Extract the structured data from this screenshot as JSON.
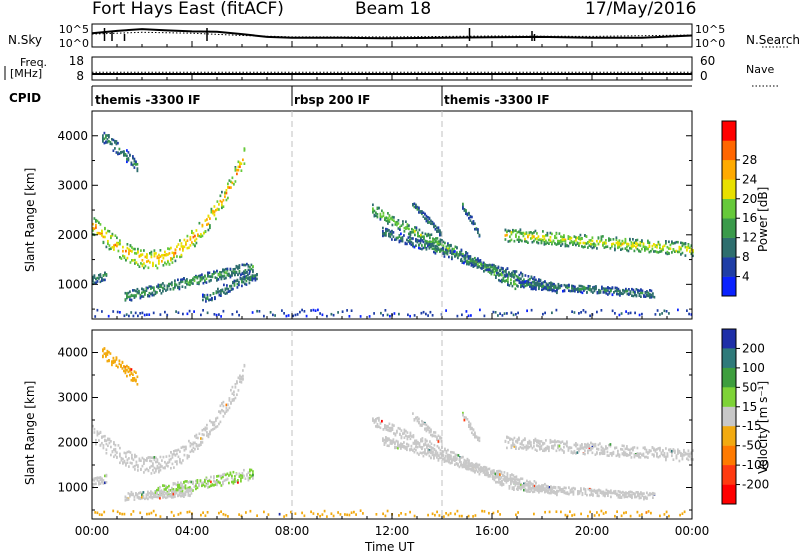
{
  "header": {
    "title": "Fort Hays East (fitACF)",
    "beam": "Beam 18",
    "date": "17/May/2016"
  },
  "labels": {
    "nsky": "N.Sky",
    "nsearch": "N.Search",
    "freq_line1": "Freq.",
    "freq_line2": "[MHz]",
    "nave": "Nave",
    "cpid": "CPID",
    "slant_range": "Slant Range [km]",
    "power_axis": "Power [dB]",
    "velocity_axis": "Velocity [m s⁻¹]",
    "time_ut": "Time UT"
  },
  "cpid_segments": [
    {
      "name": "themis -3300 IF",
      "start_hour": 0
    },
    {
      "name": "rbsp 200 IF",
      "start_hour": 8
    },
    {
      "name": "themis -3300 IF",
      "start_hour": 14
    }
  ],
  "colorbars": {
    "power": {
      "ticks": [
        "4",
        "8",
        "12",
        "16",
        "20",
        "24",
        "28"
      ],
      "colors": [
        "#0a22ff",
        "#1f3ea6",
        "#2e6e6e",
        "#3a9a4a",
        "#66c93a",
        "#e8e000",
        "#ffaa00",
        "#ff6600",
        "#ff0000"
      ]
    },
    "velocity": {
      "ticks": [
        "200",
        "100",
        "50",
        "15",
        "-15",
        "-50",
        "-100",
        "-200"
      ],
      "colors": [
        "#1e2fa8",
        "#2f7a7a",
        "#3e9e3e",
        "#7ed337",
        "#c8c8c8",
        "#f2aa10",
        "#ff7a00",
        "#ff3a10",
        "#ff0000"
      ]
    }
  },
  "chart_data": [
    {
      "type": "line",
      "panel": "N.Sky / N.Search",
      "x_range_hours": [
        0,
        24
      ],
      "ylim_left": [
        "10^0",
        "10^5"
      ],
      "ylim_right": [
        "10^0",
        "10^5"
      ],
      "y_ticks_left": [
        "10^5",
        "10^0"
      ],
      "y_ticks_right": [
        "10^5",
        "10^0"
      ],
      "series": [
        {
          "name": "N.Sky",
          "style": "solid",
          "points": [
            [
              0,
              3.0
            ],
            [
              1,
              3.5
            ],
            [
              2,
              3.9
            ],
            [
              3,
              3.6
            ],
            [
              4,
              3.4
            ],
            [
              5,
              3.3
            ],
            [
              6,
              2.8
            ],
            [
              7,
              2.2
            ],
            [
              8,
              2.0
            ],
            [
              10,
              2.0
            ],
            [
              12,
              1.9
            ],
            [
              14,
              2.0
            ],
            [
              16,
              2.1
            ],
            [
              18,
              2.2
            ],
            [
              20,
              2.0
            ],
            [
              22,
              2.0
            ],
            [
              24,
              2.5
            ]
          ]
        },
        {
          "name": "N.Search",
          "style": "dotted",
          "points": [
            [
              0,
              2.8
            ],
            [
              2,
              3.2
            ],
            [
              4,
              3.0
            ],
            [
              6,
              2.5
            ],
            [
              8,
              2.2
            ],
            [
              12,
              2.2
            ],
            [
              16,
              2.4
            ],
            [
              20,
              2.3
            ],
            [
              24,
              2.6
            ]
          ]
        }
      ]
    },
    {
      "type": "line",
      "panel": "Freq. / Nave",
      "x_range_hours": [
        0,
        24
      ],
      "ylim_left": [
        8,
        18
      ],
      "ylim_right": [
        0,
        60
      ],
      "y_ticks_left": [
        "18",
        "8"
      ],
      "y_ticks_right": [
        "60",
        "0"
      ],
      "series": [
        {
          "name": "Freq.",
          "style": "solid",
          "points": [
            [
              0,
              10.6
            ],
            [
              6,
              10.6
            ],
            [
              12,
              10.6
            ],
            [
              18,
              10.6
            ],
            [
              24,
              10.6
            ]
          ]
        },
        {
          "name": "Nave",
          "style": "dotted",
          "points": [
            [
              0,
              20
            ],
            [
              6,
              20
            ],
            [
              12,
              20
            ],
            [
              18,
              20
            ],
            [
              24,
              20
            ]
          ]
        }
      ]
    },
    {
      "type": "heatmap",
      "panel": "Power",
      "xlabel": "",
      "ylabel": "Slant Range [km]",
      "x_range_hours": [
        0,
        24
      ],
      "y_range_km": [
        300,
        4500
      ],
      "x_ticks": [
        "00:00",
        "04:00",
        "08:00",
        "12:00",
        "16:00",
        "20:00",
        "00:00"
      ],
      "y_ticks": [
        1000,
        2000,
        3000,
        4000
      ],
      "value_range_db": [
        0,
        32
      ],
      "bands": [
        {
          "t0": 0.0,
          "t1": 6.1,
          "r_start": 2200,
          "r_min": 1500,
          "t_min": 2.3,
          "r_end": 3600,
          "width": 380,
          "p": 22
        },
        {
          "t0": 1.3,
          "t1": 6.4,
          "r_start": 750,
          "r_end": 1350,
          "width": 200,
          "p": 12
        },
        {
          "t0": 4.4,
          "t1": 6.6,
          "r_start": 700,
          "r_end": 1200,
          "width": 200,
          "p": 10
        },
        {
          "t0": 0.0,
          "t1": 0.6,
          "r_start": 1100,
          "r_end": 1200,
          "width": 200,
          "p": 10
        },
        {
          "t0": 0.4,
          "t1": 1.8,
          "r_start": 4000,
          "r_end": 3400,
          "width": 250,
          "p": 10
        },
        {
          "t0": 11.2,
          "t1": 17.0,
          "r_start": 2500,
          "r_end": 1000,
          "width": 230,
          "p": 15
        },
        {
          "t0": 11.6,
          "t1": 18.6,
          "r_start": 2050,
          "r_end": 900,
          "width": 180,
          "p": 10
        },
        {
          "t0": 12.8,
          "t1": 14.0,
          "r_start": 2600,
          "r_end": 2000,
          "width": 150,
          "p": 9
        },
        {
          "t0": 14.8,
          "t1": 15.5,
          "r_start": 2600,
          "r_end": 2000,
          "width": 150,
          "p": 9
        },
        {
          "t0": 16.5,
          "t1": 24.0,
          "r_start": 2000,
          "r_end": 1700,
          "width": 260,
          "p": 18
        },
        {
          "t0": 17.0,
          "t1": 22.5,
          "r_start": 1000,
          "r_end": 800,
          "width": 150,
          "p": 10
        },
        {
          "t0": 0.0,
          "t1": 24.0,
          "r_start": 420,
          "r_end": 420,
          "width": 150,
          "p": 6
        }
      ]
    },
    {
      "type": "heatmap",
      "panel": "Velocity",
      "xlabel": "Time UT",
      "ylabel": "Slant Range [km]",
      "x_range_hours": [
        0,
        24
      ],
      "y_range_km": [
        300,
        4500
      ],
      "x_ticks": [
        "00:00",
        "04:00",
        "08:00",
        "12:00",
        "16:00",
        "20:00",
        "00:00"
      ],
      "y_ticks": [
        1000,
        2000,
        3000,
        4000
      ],
      "value_range_ms": [
        -250,
        250
      ],
      "bands": [
        {
          "t0": 0.0,
          "t1": 6.1,
          "r_start": 2200,
          "r_min": 1500,
          "t_min": 2.3,
          "r_end": 3600,
          "width": 380,
          "v": 0
        },
        {
          "t0": 2.5,
          "t1": 6.4,
          "r_start": 900,
          "r_end": 1300,
          "width": 250,
          "v": 30
        },
        {
          "t0": 1.3,
          "t1": 4.0,
          "r_start": 800,
          "r_end": 900,
          "width": 180,
          "v": 0
        },
        {
          "t0": 0.0,
          "t1": 0.6,
          "r_start": 1100,
          "r_end": 1200,
          "width": 200,
          "v": 0
        },
        {
          "t0": 0.4,
          "t1": 1.8,
          "r_start": 4000,
          "r_end": 3400,
          "width": 250,
          "v": -40
        },
        {
          "t0": 11.2,
          "t1": 17.0,
          "r_start": 2500,
          "r_end": 1000,
          "width": 230,
          "v": 0
        },
        {
          "t0": 11.6,
          "t1": 18.6,
          "r_start": 2050,
          "r_end": 900,
          "width": 180,
          "v": 0
        },
        {
          "t0": 12.8,
          "t1": 14.0,
          "r_start": 2600,
          "r_end": 2000,
          "width": 150,
          "v": 0
        },
        {
          "t0": 14.8,
          "t1": 15.5,
          "r_start": 2600,
          "r_end": 2000,
          "width": 150,
          "v": 0
        },
        {
          "t0": 16.5,
          "t1": 24.0,
          "r_start": 2000,
          "r_end": 1700,
          "width": 260,
          "v": 0
        },
        {
          "t0": 17.0,
          "t1": 22.5,
          "r_start": 1000,
          "r_end": 800,
          "width": 150,
          "v": 0
        },
        {
          "t0": 0.0,
          "t1": 24.0,
          "r_start": 420,
          "r_end": 420,
          "width": 150,
          "v": -40
        }
      ]
    }
  ]
}
